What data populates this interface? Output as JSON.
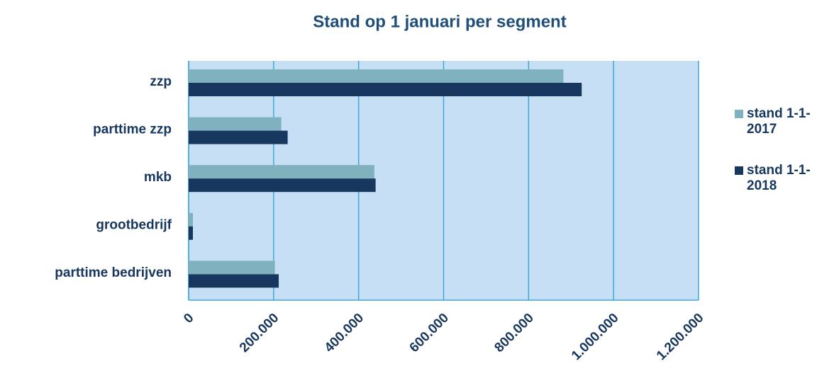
{
  "chart_data": {
    "type": "bar",
    "orientation": "horizontal",
    "title": "Stand op 1 januari per segment",
    "categories": [
      "zzp",
      "parttime zzp",
      "mkb",
      "grootbedrijf",
      "parttime bedrijven"
    ],
    "series": [
      {
        "name": "stand 1-1-2017",
        "color": "#7fb2be",
        "values": [
          882000,
          218000,
          437000,
          10000,
          203000
        ]
      },
      {
        "name": "stand 1-1-2018",
        "color": "#17375e",
        "values": [
          925000,
          233000,
          440000,
          10000,
          212000
        ]
      }
    ],
    "xlim": [
      0,
      1200000
    ],
    "xticks": [
      0,
      {
        "value": 200000,
        "label": "200.000"
      },
      {
        "value": 400000,
        "label": "400.000"
      },
      {
        "value": 600000,
        "label": "600.000"
      },
      {
        "value": 800000,
        "label": "800.000"
      },
      {
        "value": 1000000,
        "label": "1.000.000"
      },
      {
        "value": 1200000,
        "label": "1.200.000"
      }
    ],
    "grid": true,
    "legend": "right"
  }
}
